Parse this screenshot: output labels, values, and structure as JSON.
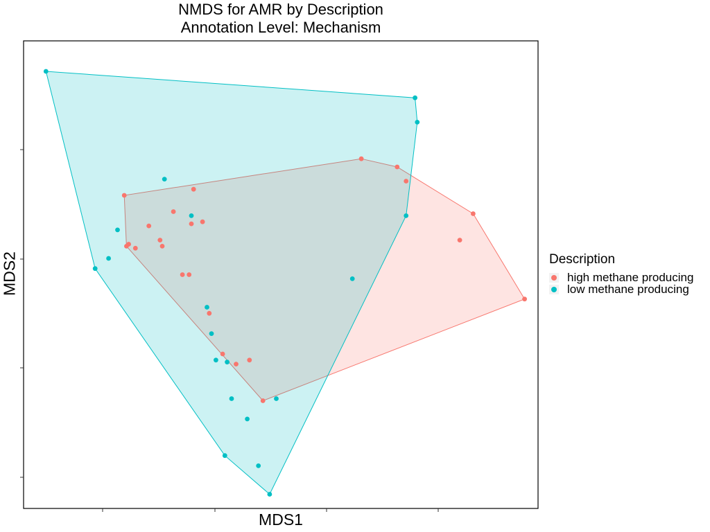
{
  "chart_data": {
    "type": "scatter",
    "title": "NMDS for AMR by Description",
    "subtitle": "Annotation Level: Mechanism",
    "xlabel": "MDS1",
    "ylabel": "MDS2",
    "xlim": [
      -1.15,
      1.15
    ],
    "ylim": [
      -1.15,
      1.15
    ],
    "grid": false,
    "hulls": true,
    "legend_title": "Description",
    "legend_position": "right",
    "series": [
      {
        "name": "high methane producing",
        "color": "#F8766D",
        "points": [
          [
            0.36,
            0.57
          ],
          [
            0.56,
            0.46
          ],
          [
            0.86,
            0.3
          ],
          [
            0.52,
            0.53
          ],
          [
            1.09,
            -0.12
          ],
          [
            0.8,
            0.17
          ],
          [
            -0.7,
            0.39
          ],
          [
            -0.39,
            0.42
          ],
          [
            -0.48,
            0.31
          ],
          [
            -0.4,
            0.25
          ],
          [
            -0.35,
            0.26
          ],
          [
            -0.59,
            0.24
          ],
          [
            -0.68,
            0.15
          ],
          [
            -0.69,
            0.14
          ],
          [
            -0.65,
            0.13
          ],
          [
            -0.54,
            0.17
          ],
          [
            -0.53,
            0.14
          ],
          [
            -0.44,
            0.0
          ],
          [
            -0.41,
            0.0
          ],
          [
            -0.32,
            -0.19
          ],
          [
            -0.26,
            -0.39
          ],
          [
            -0.2,
            -0.44
          ],
          [
            -0.14,
            -0.42
          ],
          [
            -0.08,
            -0.62
          ]
        ]
      },
      {
        "name": "low methane producing",
        "color": "#00BFC4",
        "points": [
          [
            -1.05,
            1.0
          ],
          [
            0.6,
            0.87
          ],
          [
            0.61,
            0.75
          ],
          [
            -0.83,
            0.03
          ],
          [
            -0.77,
            0.08
          ],
          [
            -0.73,
            0.22
          ],
          [
            -0.52,
            0.47
          ],
          [
            -0.4,
            0.29
          ],
          [
            0.32,
            -0.02
          ],
          [
            0.56,
            0.29
          ],
          [
            -0.33,
            -0.16
          ],
          [
            -0.31,
            -0.29
          ],
          [
            -0.29,
            -0.42
          ],
          [
            -0.24,
            -0.43
          ],
          [
            -0.22,
            -0.61
          ],
          [
            -0.02,
            -0.61
          ],
          [
            -0.15,
            -0.71
          ],
          [
            -0.25,
            -0.89
          ],
          [
            -0.1,
            -0.94
          ],
          [
            -0.05,
            -1.08
          ]
        ]
      }
    ]
  }
}
